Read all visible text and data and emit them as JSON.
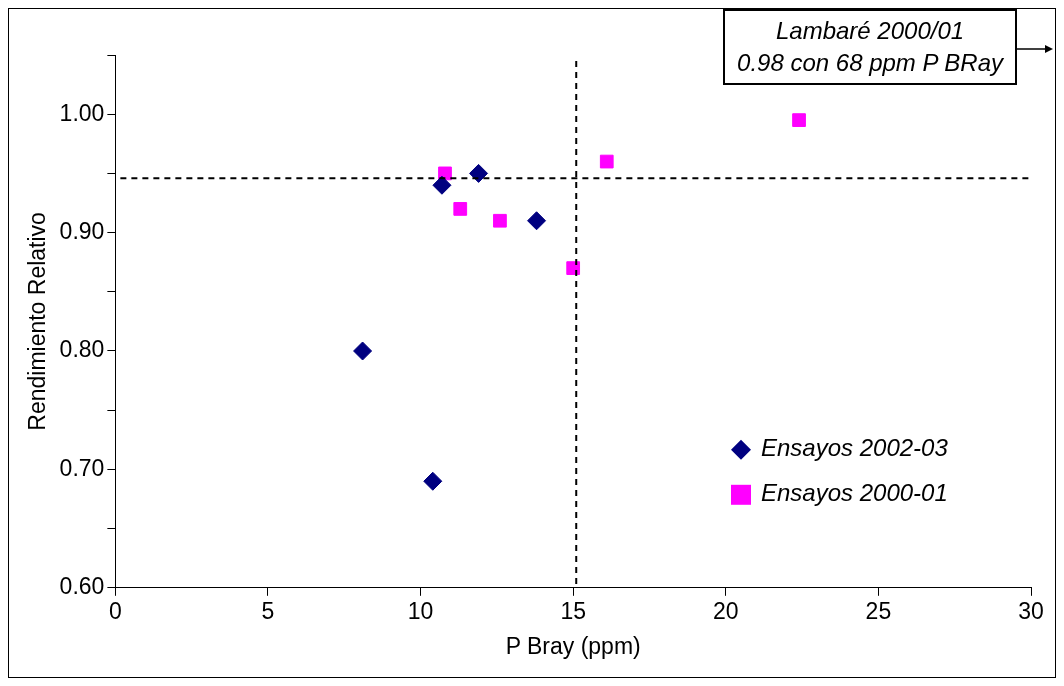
{
  "chart_data": {
    "type": "scatter",
    "xlabel": "P Bray (ppm)",
    "ylabel": "Rendimiento Relativo",
    "xlim": [
      0,
      30
    ],
    "xticks": [
      0,
      5,
      10,
      15,
      20,
      25,
      30
    ],
    "ylim": [
      0.6,
      1.05
    ],
    "yticks": [
      {
        "value": 0.6,
        "label": "0.60"
      },
      {
        "value": 0.65,
        "label": null
      },
      {
        "value": 0.7,
        "label": "0.70"
      },
      {
        "value": 0.75,
        "label": null
      },
      {
        "value": 0.8,
        "label": "0.80"
      },
      {
        "value": 0.85,
        "label": null
      },
      {
        "value": 0.9,
        "label": "0.90"
      },
      {
        "value": 0.95,
        "label": null
      },
      {
        "value": 1.0,
        "label": "1.00"
      },
      {
        "value": 1.05,
        "label": null
      }
    ],
    "grid": false,
    "legend": "bottom right",
    "series": [
      {
        "name": "Ensayos 2002-03",
        "color": "#000080",
        "marker": "diamond",
        "x": [
          8.1,
          10.4,
          10.7,
          11.9,
          13.8
        ],
        "values": [
          0.8,
          0.69,
          0.94,
          0.95,
          0.91
        ]
      },
      {
        "name": "Ensayos 2000-01",
        "color": "#ff00ff",
        "marker": "square",
        "x": [
          10.8,
          11.3,
          12.6,
          15.0,
          16.1,
          22.4
        ],
        "values": [
          0.95,
          0.92,
          0.91,
          0.87,
          0.96,
          0.995
        ]
      }
    ],
    "ref_lines": [
      {
        "axis": "x",
        "value": 15.1,
        "line_style": "dashed",
        "color": "#000000"
      },
      {
        "axis": "y",
        "value": 0.946,
        "line_style": "dashed",
        "color": "#000000"
      }
    ],
    "annotations": [
      "Lambaré 2000/01",
      "0.98 con 68 ppm P BRay"
    ]
  }
}
